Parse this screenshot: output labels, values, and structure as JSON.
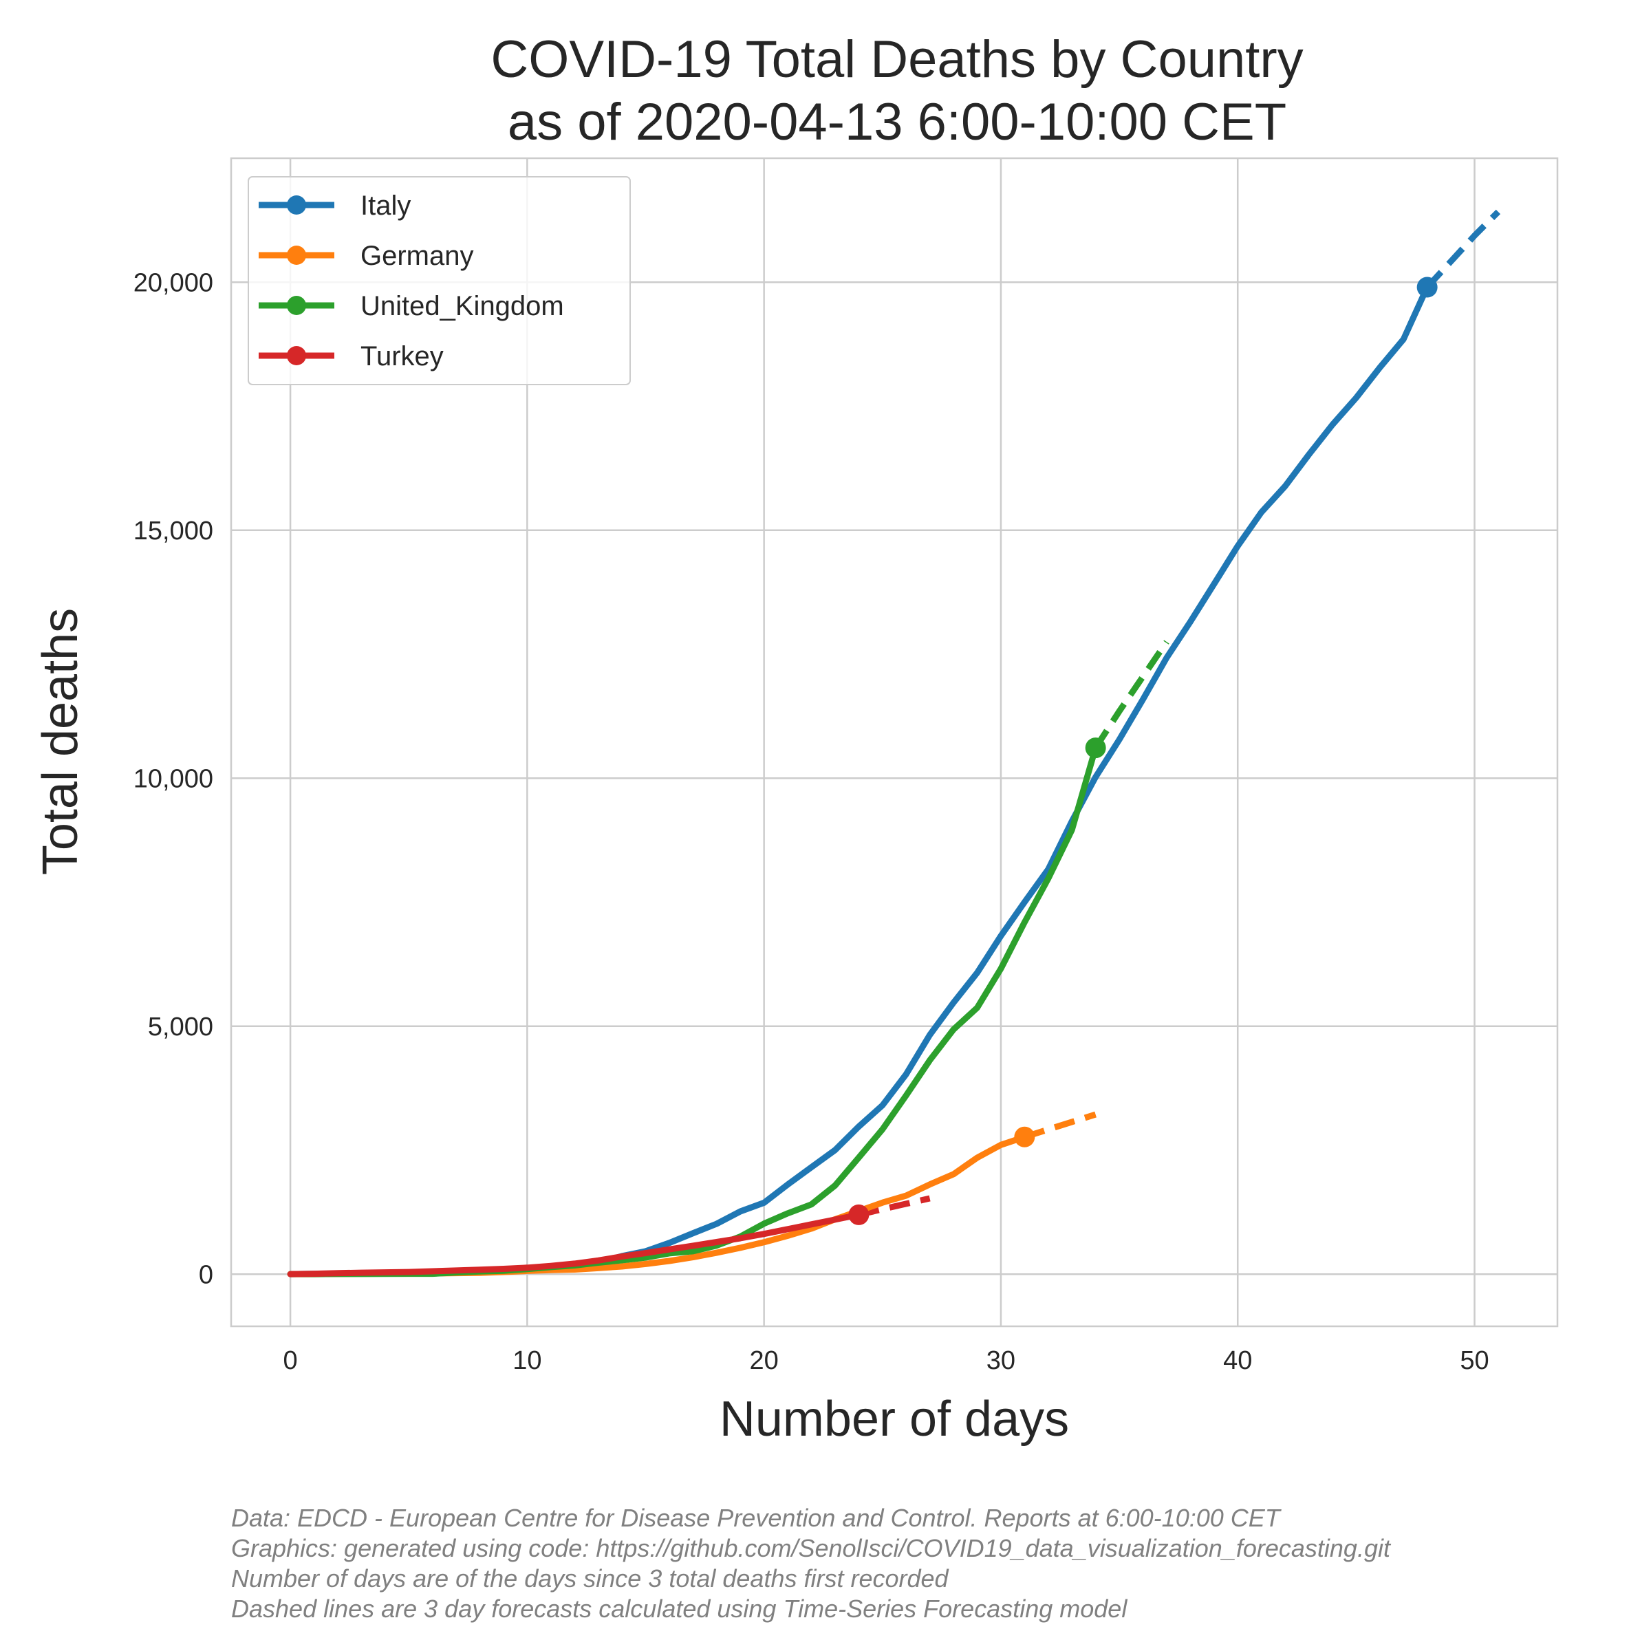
{
  "chart_data": {
    "type": "line",
    "title_lines": [
      "COVID-19 Total Deaths by Country",
      "as of 2020-04-13 6:00-10:00 CET"
    ],
    "xlabel": "Number of days",
    "ylabel": "Total deaths",
    "xlim": [
      -2.5,
      53.5
    ],
    "ylim": [
      -1050,
      22500
    ],
    "x_ticks": [
      0,
      10,
      20,
      30,
      40,
      50
    ],
    "y_ticks": [
      0,
      5000,
      10000,
      15000,
      20000
    ],
    "y_tick_labels": [
      "0",
      "5,000",
      "10,000",
      "15,000",
      "20,000"
    ],
    "grid": true,
    "legend_position": "top-left",
    "series": [
      {
        "name": "Italy",
        "color": "#1f77b4",
        "x": [
          0,
          1,
          2,
          3,
          4,
          5,
          6,
          7,
          8,
          9,
          10,
          11,
          12,
          13,
          14,
          15,
          16,
          17,
          18,
          19,
          20,
          21,
          22,
          23,
          24,
          25,
          26,
          27,
          28,
          29,
          30,
          31,
          32,
          33,
          34,
          35,
          36,
          37,
          38,
          39,
          40,
          41,
          42,
          43,
          44,
          45,
          46,
          47,
          48
        ],
        "y": [
          3,
          7,
          10,
          12,
          17,
          21,
          29,
          34,
          52,
          79,
          107,
          148,
          197,
          233,
          366,
          463,
          631,
          827,
          1016,
          1266,
          1441,
          1809,
          2158,
          2503,
          2978,
          3405,
          4032,
          4825,
          5476,
          6077,
          6820,
          7503,
          8165,
          9134,
          10023,
          10779,
          11591,
          12428,
          13155,
          13915,
          14681,
          15362,
          15887,
          16523,
          17127,
          17669,
          18279,
          18849,
          19899
        ]
      },
      {
        "name": "Germany",
        "color": "#ff7f0e",
        "x": [
          0,
          1,
          2,
          3,
          4,
          5,
          6,
          7,
          8,
          9,
          10,
          11,
          12,
          13,
          14,
          15,
          16,
          17,
          18,
          19,
          20,
          21,
          22,
          23,
          24,
          25,
          26,
          27,
          28,
          29,
          30,
          31
        ],
        "y": [
          3,
          3,
          6,
          9,
          11,
          13,
          17,
          24,
          28,
          44,
          68,
          84,
          94,
          123,
          157,
          206,
          267,
          342,
          433,
          533,
          645,
          775,
          920,
          1107,
          1275,
          1444,
          1584,
          1810,
          2016,
          2349,
          2607,
          2767
        ],
        "forecast_x": [
          31,
          32,
          33,
          34
        ],
        "forecast_y": [
          2767,
          2920,
          3070,
          3220
        ]
      },
      {
        "name": "United_Kingdom",
        "color": "#2ca02c",
        "x": [
          0,
          1,
          2,
          3,
          4,
          5,
          6,
          7,
          8,
          9,
          10,
          11,
          12,
          13,
          14,
          15,
          16,
          17,
          18,
          19,
          20,
          21,
          22,
          23,
          24,
          25,
          26,
          27,
          28,
          29,
          30,
          31,
          32,
          33,
          34
        ],
        "y": [
          3,
          3,
          5,
          6,
          8,
          10,
          10,
          35,
          55,
          71,
          104,
          144,
          177,
          233,
          281,
          335,
          422,
          463,
          578,
          759,
          1019,
          1228,
          1408,
          1789,
          2352,
          2921,
          3605,
          4313,
          4934,
          5373,
          6159,
          7097,
          7978,
          8958,
          10612
        ],
        "forecast_x": [
          34,
          35,
          36,
          37
        ],
        "forecast_y": [
          10612,
          11350,
          12050,
          12750
        ]
      },
      {
        "name": "Turkey",
        "color": "#d62728",
        "x": [
          0,
          1,
          2,
          3,
          4,
          5,
          6,
          7,
          8,
          9,
          10,
          11,
          12,
          13,
          14,
          15,
          16,
          17,
          18,
          19,
          20,
          21,
          22,
          23,
          24
        ],
        "y": [
          3,
          9,
          21,
          30,
          37,
          44,
          59,
          75,
          92,
          108,
          131,
          168,
          214,
          277,
          356,
          425,
          501,
          574,
          649,
          725,
          812,
          908,
          1006,
          1101,
          1198
        ],
        "forecast_x": [
          24,
          25,
          26,
          27
        ],
        "forecast_y": [
          1198,
          1310,
          1420,
          1530
        ]
      }
    ],
    "italy_forecast": {
      "x": [
        48,
        49,
        50,
        51
      ],
      "y": [
        19899,
        20420,
        20940,
        21420
      ]
    }
  },
  "footnotes": [
    "Data: EDCD - European Centre for Disease Prevention and Control. Reports at 6:00-10:00 CET",
    "Graphics: generated using code: https://github.com/SenolIsci/COVID19_data_visualization_forecasting.git",
    "Number of days are of the days since 3 total deaths first recorded",
    "Dashed lines are 3 day forecasts calculated using Time-Series Forecasting model"
  ]
}
